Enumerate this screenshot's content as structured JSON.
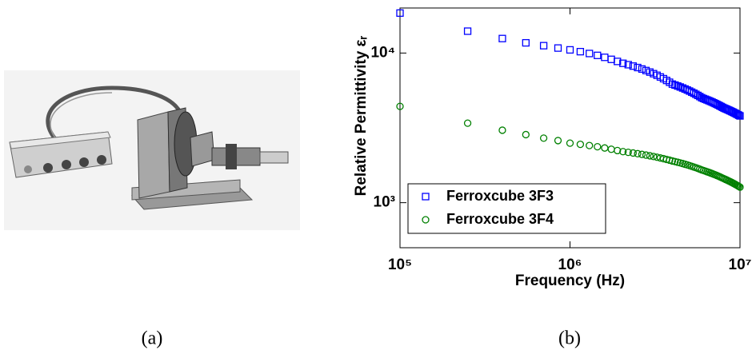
{
  "captions": [
    "(a)",
    "(b)"
  ],
  "chart_data": {
    "type": "scatter",
    "xlabel": "Frequency (Hz)",
    "ylabel": "Relative Permittivity εᵣ",
    "xscale": "log",
    "yscale": "log",
    "xlim": [
      100000,
      10000000
    ],
    "ylim": [
      500,
      20000
    ],
    "xticks": [
      {
        "value": 100000,
        "label": "10⁵"
      },
      {
        "value": 1000000,
        "label": "10⁶"
      },
      {
        "value": 10000000,
        "label": "10⁷"
      }
    ],
    "yticks": [
      {
        "value": 1000,
        "label": "10³"
      },
      {
        "value": 10000,
        "label": "10⁴"
      }
    ],
    "legend": "lower left",
    "x": [
      100000,
      250000,
      400000,
      550000,
      700000,
      850000,
      1000000,
      1150000,
      1300000,
      1450000,
      1600000,
      1750000,
      1900000,
      2050000,
      2200000,
      2350000,
      2500000,
      2650000,
      2800000,
      2950000,
      3100000,
      3250000,
      3400000,
      3550000,
      3700000,
      3850000,
      4000000,
      4150000,
      4300000,
      4450000,
      4600000,
      4750000,
      4900000,
      5050000,
      5200000,
      5350000,
      5500000,
      5650000,
      5800000,
      5950000,
      6100000,
      6250000,
      6400000,
      6550000,
      6700000,
      6850000,
      7000000,
      7150000,
      7300000,
      7450000,
      7600000,
      7750000,
      7900000,
      8050000,
      8200000,
      8350000,
      8500000,
      8650000,
      8800000,
      8950000,
      9100000,
      9250000,
      9400000,
      9550000,
      9700000,
      9850000,
      10000000
    ],
    "series": [
      {
        "name": "Ferroxcube 3F3",
        "color": "#0000ff",
        "marker": "square",
        "values": [
          18500,
          14000,
          12500,
          11700,
          11200,
          10800,
          10500,
          10215,
          9930,
          9645,
          9360,
          9075,
          8790,
          8540,
          8360,
          8180,
          8000,
          7820,
          7640,
          7460,
          7280,
          7100,
          6920,
          6740,
          6560,
          6380,
          6200,
          6110,
          6020,
          5930,
          5840,
          5750,
          5660,
          5570,
          5480,
          5390,
          5300,
          5210,
          5120,
          5030,
          4965,
          4913,
          4860,
          4808,
          4755,
          4703,
          4650,
          4598,
          4545,
          4493,
          4440,
          4388,
          4335,
          4288,
          4250,
          4213,
          4175,
          4138,
          4100,
          4063,
          4025,
          3988,
          3950,
          3913,
          3875,
          3838,
          3800
        ]
      },
      {
        "name": "Ferroxcube 3F4",
        "color": "#008000",
        "marker": "circle",
        "values": [
          4400,
          3400,
          3050,
          2850,
          2700,
          2600,
          2500,
          2455,
          2410,
          2365,
          2320,
          2275,
          2230,
          2193,
          2170,
          2148,
          2125,
          2103,
          2080,
          2058,
          2035,
          2013,
          1990,
          1968,
          1945,
          1923,
          1900,
          1881,
          1863,
          1844,
          1825,
          1806,
          1788,
          1769,
          1750,
          1731,
          1713,
          1694,
          1675,
          1656,
          1640,
          1625,
          1610,
          1595,
          1580,
          1565,
          1550,
          1535,
          1520,
          1505,
          1490,
          1475,
          1460,
          1446,
          1432,
          1419,
          1405,
          1392,
          1378,
          1365,
          1351,
          1338,
          1324,
          1311,
          1297,
          1284,
          1270
        ]
      }
    ]
  }
}
